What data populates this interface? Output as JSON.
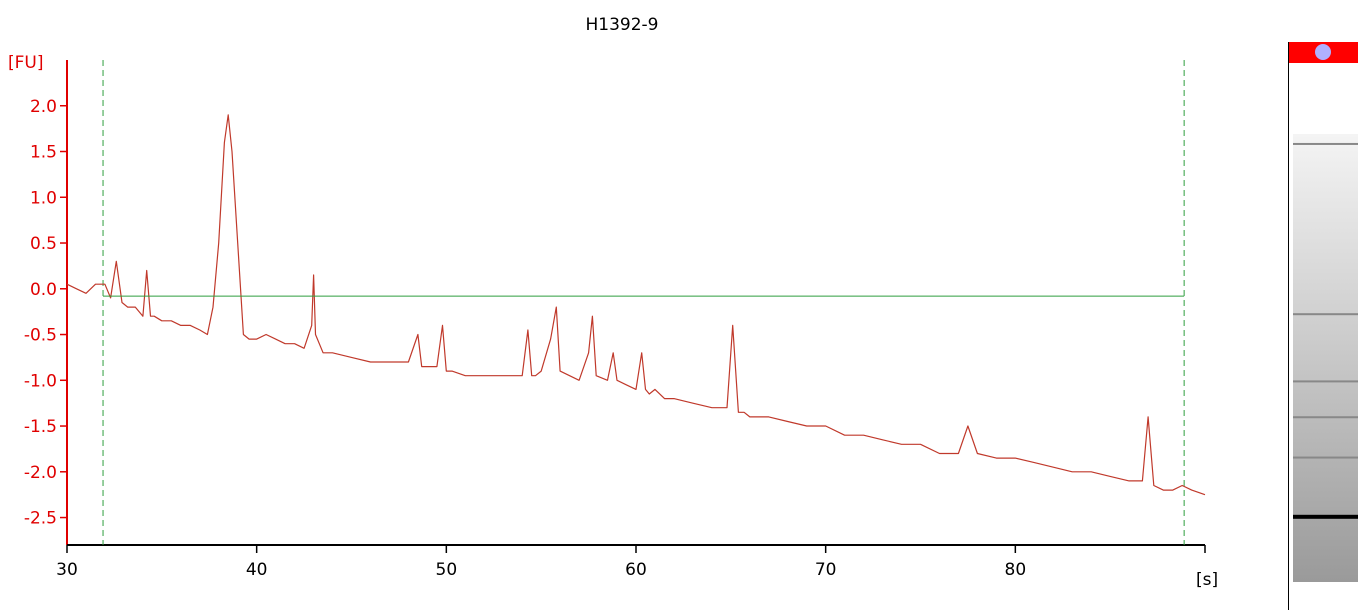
{
  "chart_data": {
    "type": "line",
    "title": "H1392-9",
    "ylabel": "[FU]",
    "xlabel": "[s]",
    "xlim": [
      30,
      90
    ],
    "ylim": [
      -2.8,
      2.5
    ],
    "xticks": [
      30,
      40,
      50,
      60,
      70,
      80
    ],
    "xtick_labels": [
      "30",
      "40",
      "50",
      "60",
      "70",
      "80"
    ],
    "yticks": [
      2.0,
      1.5,
      1.0,
      0.5,
      0.0,
      -0.5,
      -1.0,
      -1.5,
      -2.0,
      -2.5
    ],
    "ytick_labels": [
      "2.0",
      "1.5",
      "1.0",
      "0.5",
      "0.0",
      "-0.5",
      "-1.0",
      "-1.5",
      "-2.0",
      "-2.5"
    ],
    "grid": false,
    "series": [
      {
        "color": "#c0392b",
        "x": [
          30.0,
          30.5,
          31.0,
          31.5,
          32.0,
          32.3,
          32.6,
          32.9,
          33.2,
          33.6,
          34.0,
          34.2,
          34.4,
          34.6,
          35.0,
          35.5,
          36.0,
          36.5,
          37.0,
          37.4,
          37.7,
          38.0,
          38.3,
          38.5,
          38.7,
          39.0,
          39.3,
          39.6,
          40.0,
          40.5,
          41.0,
          41.5,
          42.0,
          42.5,
          42.9,
          43.0,
          43.1,
          43.5,
          44.0,
          45.0,
          46.0,
          47.0,
          48.0,
          48.5,
          48.7,
          48.9,
          49.5,
          49.8,
          50.0,
          50.3,
          51.0,
          52.0,
          53.0,
          54.0,
          54.3,
          54.5,
          54.7,
          55.0,
          55.5,
          55.8,
          56.0,
          56.5,
          57.0,
          57.5,
          57.7,
          57.9,
          58.5,
          58.8,
          59.0,
          59.5,
          60.0,
          60.3,
          60.5,
          60.7,
          61.0,
          61.5,
          62.0,
          63.0,
          64.0,
          64.8,
          65.1,
          65.4,
          65.7,
          66.0,
          67.0,
          68.0,
          69.0,
          70.0,
          71.0,
          72.0,
          73.0,
          74.0,
          75.0,
          76.0,
          77.0,
          77.5,
          78.0,
          79.0,
          80.0,
          81.0,
          82.0,
          83.0,
          84.0,
          85.0,
          86.0,
          86.7,
          87.0,
          87.3,
          87.8,
          88.3,
          88.8,
          89.3,
          90.0
        ],
        "y": [
          0.05,
          0.0,
          -0.05,
          0.05,
          0.05,
          -0.1,
          0.3,
          -0.15,
          -0.2,
          -0.2,
          -0.3,
          0.2,
          -0.3,
          -0.3,
          -0.35,
          -0.35,
          -0.4,
          -0.4,
          -0.45,
          -0.5,
          -0.2,
          0.5,
          1.6,
          1.9,
          1.5,
          0.5,
          -0.5,
          -0.55,
          -0.55,
          -0.5,
          -0.55,
          -0.6,
          -0.6,
          -0.65,
          -0.4,
          0.15,
          -0.5,
          -0.7,
          -0.7,
          -0.75,
          -0.8,
          -0.8,
          -0.8,
          -0.5,
          -0.85,
          -0.85,
          -0.85,
          -0.4,
          -0.9,
          -0.9,
          -0.95,
          -0.95,
          -0.95,
          -0.95,
          -0.45,
          -0.95,
          -0.95,
          -0.9,
          -0.55,
          -0.2,
          -0.9,
          -0.95,
          -1.0,
          -0.7,
          -0.3,
          -0.95,
          -1.0,
          -0.7,
          -1.0,
          -1.05,
          -1.1,
          -0.7,
          -1.1,
          -1.15,
          -1.1,
          -1.2,
          -1.2,
          -1.25,
          -1.3,
          -1.3,
          -0.4,
          -1.35,
          -1.35,
          -1.4,
          -1.4,
          -1.45,
          -1.5,
          -1.5,
          -1.6,
          -1.6,
          -1.65,
          -1.7,
          -1.7,
          -1.8,
          -1.8,
          -1.5,
          -1.8,
          -1.85,
          -1.85,
          -1.9,
          -1.95,
          -2.0,
          -2.0,
          -2.05,
          -2.1,
          -2.1,
          -1.4,
          -2.15,
          -2.2,
          -2.2,
          -2.15,
          -2.2,
          -2.25
        ]
      },
      {
        "color": "#2e9e3e",
        "x": [
          31.9,
          88.9
        ],
        "y": [
          -0.08,
          -0.08
        ]
      }
    ],
    "markers": [
      31.9,
      88.9
    ],
    "marker_color": "#2e9e3e",
    "axis_color": "#e00000"
  },
  "gel": {
    "marker_color": "#ff0000",
    "dot_color": "#b0b0ff",
    "band_positions": [
      0.02,
      0.4,
      0.55,
      0.63,
      0.72,
      0.85
    ]
  }
}
